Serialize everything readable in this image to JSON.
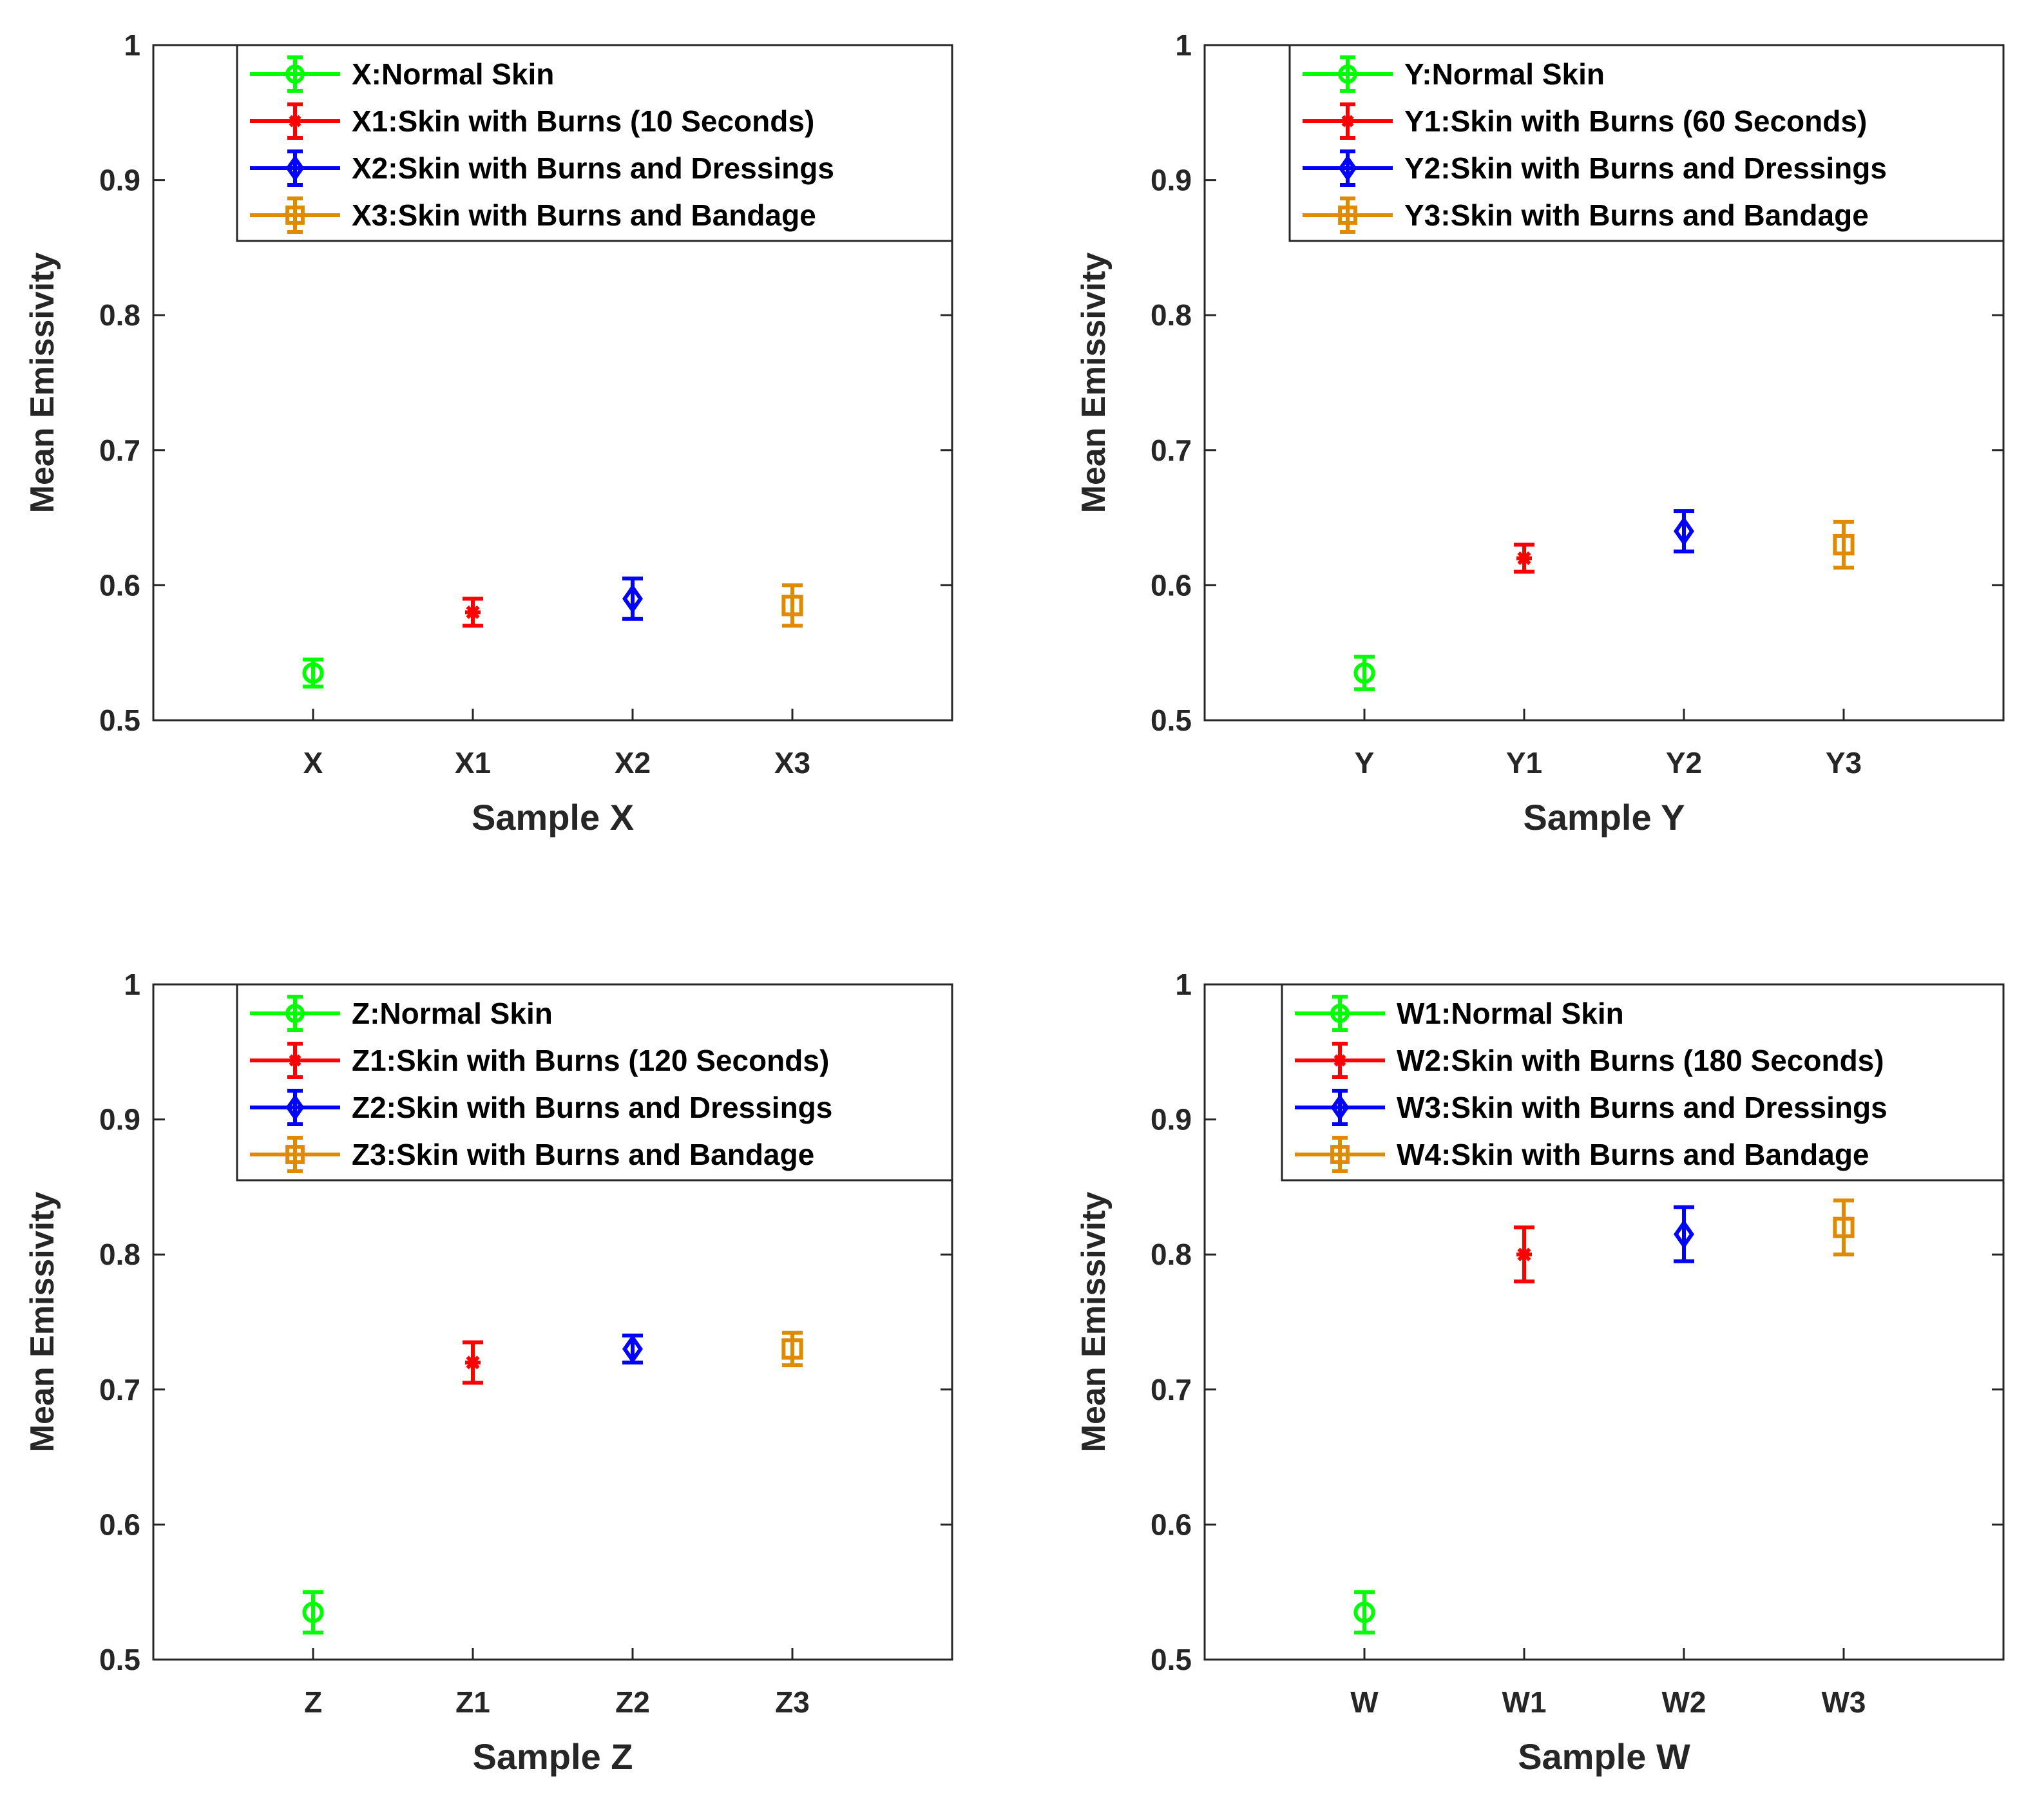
{
  "colors": {
    "normal": "#00ff00",
    "burns": "#ff0000",
    "dressings": "#0000ff",
    "bandage": "#e08a00"
  },
  "chart_data": [
    {
      "type": "scatter",
      "id": "x",
      "xlabel": "Sample X",
      "ylabel": "Mean Emissivity",
      "ylim": [
        0.5,
        1
      ],
      "yticks": [
        "0.5",
        "0.6",
        "0.7",
        "0.8",
        "0.9",
        "1"
      ],
      "categories": [
        "X",
        "X1",
        "X2",
        "X3"
      ],
      "legend_position": "top-right",
      "series": [
        {
          "name": "X:Normal Skin",
          "marker": "circle",
          "color_key": "normal",
          "y": 0.535,
          "err": 0.01
        },
        {
          "name": "X1:Skin with Burns (10 Seconds)",
          "marker": "asterisk",
          "color_key": "burns",
          "y": 0.58,
          "err": 0.01
        },
        {
          "name": "X2:Skin with Burns and Dressings",
          "marker": "diamond",
          "color_key": "dressings",
          "y": 0.59,
          "err": 0.015
        },
        {
          "name": "X3:Skin with Burns and Bandage",
          "marker": "square",
          "color_key": "bandage",
          "y": 0.585,
          "err": 0.015
        }
      ]
    },
    {
      "type": "scatter",
      "id": "y",
      "xlabel": "Sample Y",
      "ylabel": "Mean Emissivity",
      "ylim": [
        0.5,
        1
      ],
      "yticks": [
        "0.5",
        "0.6",
        "0.7",
        "0.8",
        "0.9",
        "1"
      ],
      "categories": [
        "Y",
        "Y1",
        "Y2",
        "Y3"
      ],
      "legend_position": "top-right",
      "series": [
        {
          "name": "Y:Normal Skin",
          "marker": "circle",
          "color_key": "normal",
          "y": 0.535,
          "err": 0.012
        },
        {
          "name": "Y1:Skin with Burns (60 Seconds)",
          "marker": "asterisk",
          "color_key": "burns",
          "y": 0.62,
          "err": 0.01
        },
        {
          "name": "Y2:Skin with Burns and Dressings",
          "marker": "diamond",
          "color_key": "dressings",
          "y": 0.64,
          "err": 0.015
        },
        {
          "name": "Y3:Skin with Burns and Bandage",
          "marker": "square",
          "color_key": "bandage",
          "y": 0.63,
          "err": 0.017
        }
      ]
    },
    {
      "type": "scatter",
      "id": "z",
      "xlabel": "Sample Z",
      "ylabel": "Mean Emissivity",
      "ylim": [
        0.5,
        1
      ],
      "yticks": [
        "0.5",
        "0.6",
        "0.7",
        "0.8",
        "0.9",
        "1"
      ],
      "categories": [
        "Z",
        "Z1",
        "Z2",
        "Z3"
      ],
      "legend_position": "top-right",
      "series": [
        {
          "name": "Z:Normal Skin",
          "marker": "circle",
          "color_key": "normal",
          "y": 0.535,
          "err": 0.015
        },
        {
          "name": "Z1:Skin with Burns (120 Seconds)",
          "marker": "asterisk",
          "color_key": "burns",
          "y": 0.72,
          "err": 0.015
        },
        {
          "name": "Z2:Skin with Burns and Dressings",
          "marker": "diamond",
          "color_key": "dressings",
          "y": 0.73,
          "err": 0.01
        },
        {
          "name": "Z3:Skin with Burns and Bandage",
          "marker": "square",
          "color_key": "bandage",
          "y": 0.73,
          "err": 0.012
        }
      ]
    },
    {
      "type": "scatter",
      "id": "w",
      "xlabel": "Sample W",
      "ylabel": "Mean Emissivity",
      "ylim": [
        0.5,
        1
      ],
      "yticks": [
        "0.5",
        "0.6",
        "0.7",
        "0.8",
        "0.9",
        "1"
      ],
      "categories": [
        "W",
        "W1",
        "W2",
        "W3"
      ],
      "legend_position": "top-right",
      "series": [
        {
          "name": "W1:Normal Skin",
          "marker": "circle",
          "color_key": "normal",
          "y": 0.535,
          "err": 0.015
        },
        {
          "name": "W2:Skin with Burns (180 Seconds)",
          "marker": "asterisk",
          "color_key": "burns",
          "y": 0.8,
          "err": 0.02
        },
        {
          "name": "W3:Skin with Burns and Dressings",
          "marker": "diamond",
          "color_key": "dressings",
          "y": 0.815,
          "err": 0.02
        },
        {
          "name": "W4:Skin with Burns and Bandage",
          "marker": "square",
          "color_key": "bandage",
          "y": 0.82,
          "err": 0.02
        }
      ]
    }
  ]
}
